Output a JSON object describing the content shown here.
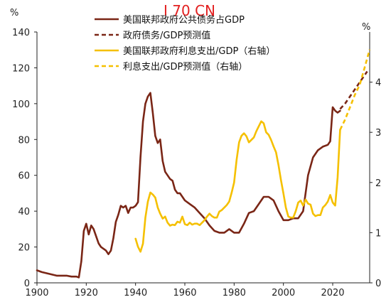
{
  "watermark": "I 70 CN",
  "chart_data": {
    "type": "line",
    "left_axis": {
      "unit": "%",
      "ylim": [
        0,
        140
      ],
      "ticks": [
        "0",
        "20",
        "40",
        "60",
        "80",
        "100",
        "120",
        "140"
      ]
    },
    "right_axis": {
      "unit": "%",
      "ylim": [
        0,
        5
      ],
      "ticks": [
        "0",
        "1",
        "2",
        "3",
        "4"
      ]
    },
    "x_axis": {
      "xlim": [
        1900,
        2035
      ],
      "ticks": [
        "1900",
        "1920",
        "1940",
        "1960",
        "1980",
        "2000",
        "2020"
      ]
    },
    "grid": false,
    "legend_position": "top-center",
    "series": [
      {
        "name": "美国联邦政府公共债务占GDP",
        "axis": "left",
        "style": "solid",
        "color": "#7a2616",
        "x": [
          1900,
          1902,
          1905,
          1908,
          1910,
          1912,
          1914,
          1916,
          1917,
          1918,
          1919,
          1920,
          1921,
          1922,
          1923,
          1924,
          1925,
          1926,
          1927,
          1928,
          1929,
          1930,
          1931,
          1932,
          1933,
          1934,
          1935,
          1936,
          1937,
          1938,
          1939,
          1940,
          1941,
          1942,
          1943,
          1944,
          1945,
          1946,
          1947,
          1948,
          1949,
          1950,
          1951,
          1952,
          1953,
          1954,
          1955,
          1956,
          1957,
          1958,
          1960,
          1962,
          1964,
          1966,
          1968,
          1970,
          1972,
          1974,
          1976,
          1978,
          1980,
          1982,
          1984,
          1986,
          1988,
          1990,
          1992,
          1994,
          1996,
          1998,
          2000,
          2002,
          2004,
          2006,
          2008,
          2010,
          2012,
          2014,
          2016,
          2018,
          2019,
          2020,
          2021,
          2022,
          2023
        ],
        "values": [
          7,
          6,
          5,
          4,
          4,
          4,
          3.5,
          3.5,
          3,
          12,
          29,
          33,
          27,
          32,
          30,
          26,
          22,
          20,
          19,
          18,
          16,
          18,
          25,
          34,
          38,
          43,
          42,
          43,
          39,
          42,
          42,
          43,
          45,
          70,
          90,
          100,
          104,
          106,
          95,
          82,
          78,
          80,
          68,
          62,
          60,
          58,
          57,
          52,
          50,
          50,
          46,
          44,
          42,
          39,
          36,
          32,
          29,
          28,
          28,
          30,
          28,
          28,
          33,
          39,
          40,
          44,
          48,
          48,
          46,
          40,
          35,
          35,
          36,
          36,
          40,
          60,
          70,
          74,
          76,
          77,
          79,
          98,
          96,
          95,
          96
        ],
        "projection": {
          "name": "政府债务/GDP预测值",
          "style": "dashed",
          "color": "#7a2616",
          "x": [
            2023,
            2025,
            2027,
            2029,
            2031,
            2033,
            2034
          ],
          "values": [
            97,
            100,
            104,
            108,
            112,
            116,
            118
          ]
        }
      },
      {
        "name": "利息支出/GDP（右轴）",
        "axis": "right",
        "style": "solid",
        "color": "#f5c000",
        "x": [
          1940,
          1941,
          1942,
          1943,
          1944,
          1945,
          1946,
          1947,
          1948,
          1949,
          1950,
          1951,
          1952,
          1953,
          1954,
          1955,
          1956,
          1957,
          1958,
          1959,
          1960,
          1961,
          1962,
          1963,
          1964,
          1965,
          1966,
          1967,
          1968,
          1969,
          1970,
          1971,
          1972,
          1973,
          1974,
          1975,
          1976,
          1977,
          1978,
          1979,
          1980,
          1981,
          1982,
          1983,
          1984,
          1985,
          1986,
          1987,
          1988,
          1989,
          1990,
          1991,
          1992,
          1993,
          1994,
          1995,
          1996,
          1997,
          1998,
          1999,
          2000,
          2001,
          2002,
          2003,
          2004,
          2005,
          2006,
          2007,
          2008,
          2009,
          2010,
          2011,
          2012,
          2013,
          2014,
          2015,
          2016,
          2017,
          2018,
          2019,
          2020,
          2021,
          2022,
          2023
        ],
        "values": [
          0.88,
          0.72,
          0.62,
          0.78,
          1.3,
          1.62,
          1.8,
          1.76,
          1.7,
          1.5,
          1.38,
          1.28,
          1.32,
          1.2,
          1.14,
          1.16,
          1.15,
          1.22,
          1.2,
          1.32,
          1.17,
          1.15,
          1.2,
          1.16,
          1.18,
          1.18,
          1.15,
          1.2,
          1.25,
          1.32,
          1.38,
          1.33,
          1.3,
          1.3,
          1.42,
          1.45,
          1.5,
          1.55,
          1.62,
          1.8,
          2.0,
          2.45,
          2.8,
          2.93,
          2.98,
          2.92,
          2.8,
          2.85,
          2.9,
          3.02,
          3.12,
          3.22,
          3.18,
          3.0,
          2.95,
          2.85,
          2.72,
          2.6,
          2.35,
          2.05,
          1.78,
          1.5,
          1.32,
          1.3,
          1.3,
          1.43,
          1.6,
          1.64,
          1.54,
          1.66,
          1.58,
          1.56,
          1.38,
          1.33,
          1.35,
          1.35,
          1.5,
          1.55,
          1.62,
          1.75,
          1.6,
          1.54,
          2.1,
          3.05
        ],
        "projection": {
          "name": "利息支出/GDP预测值（右轴）",
          "style": "dashed",
          "color": "#f5c000",
          "x": [
            2023,
            2025,
            2027,
            2029,
            2031,
            2033,
            2035
          ],
          "values": [
            3.05,
            3.25,
            3.5,
            3.75,
            3.95,
            4.3,
            4.65
          ]
        }
      }
    ],
    "legend": [
      {
        "label": "美国联邦政府公共债务占GDP",
        "color": "#7a2616",
        "style": "solid"
      },
      {
        "label": "政府债务/GDP预测值",
        "color": "#7a2616",
        "style": "dashed"
      },
      {
        "label": "美国联邦政府利息支出/GDP（右轴）",
        "color": "#f5c000",
        "style": "solid"
      },
      {
        "label": "利息支出/GDP预测值（右轴）",
        "color": "#f5c000",
        "style": "dashed"
      }
    ]
  }
}
